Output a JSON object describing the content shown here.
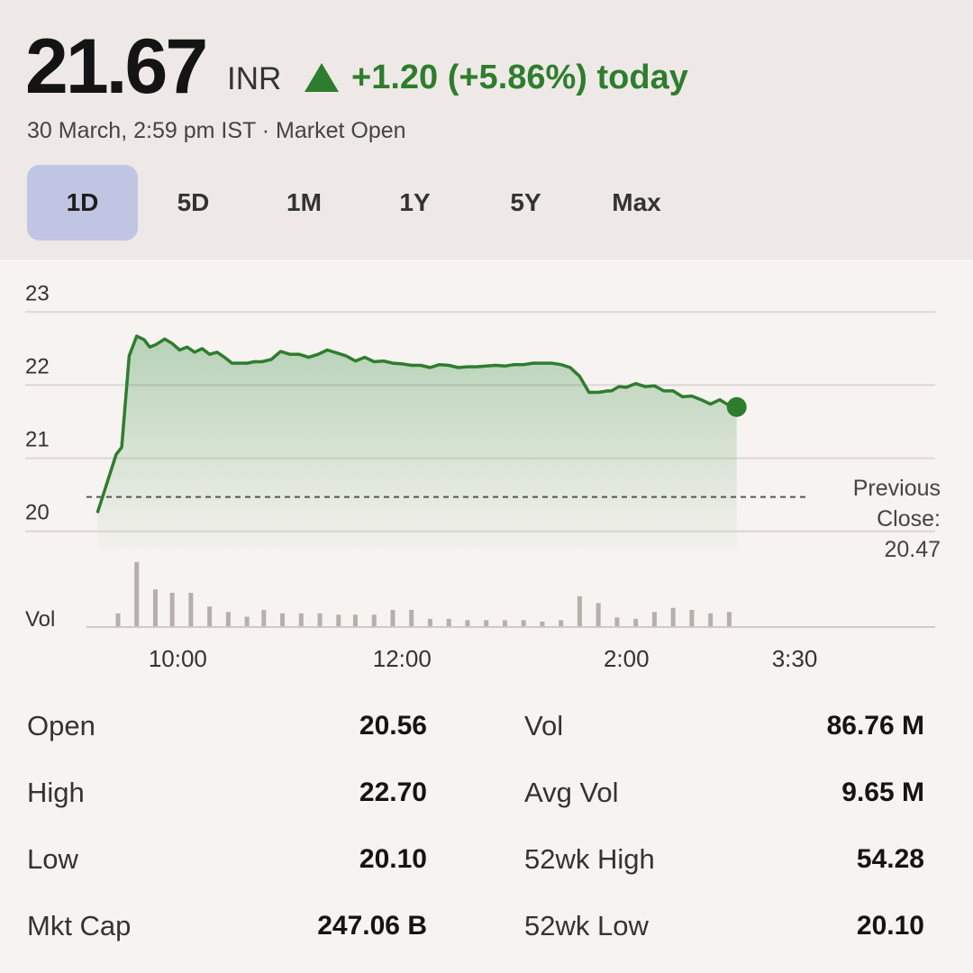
{
  "quote": {
    "price": "21.67",
    "currency": "INR",
    "change": "+1.20 (+5.86%) today",
    "timestamp": "30 March, 2:59 pm IST · Market Open",
    "up_color": "#2e7d2e"
  },
  "tabs": [
    {
      "label": "1D",
      "active": true
    },
    {
      "label": "5D",
      "active": false
    },
    {
      "label": "1M",
      "active": false
    },
    {
      "label": "1Y",
      "active": false
    },
    {
      "label": "5Y",
      "active": false
    },
    {
      "label": "Max",
      "active": false
    }
  ],
  "chart_data": {
    "type": "line",
    "ylim": [
      19.75,
      23.25
    ],
    "y_ticks": [
      "23",
      "22",
      "21",
      "20"
    ],
    "y_tick_values": [
      23,
      22,
      21,
      20
    ],
    "x_ticks": [
      "10:00",
      "12:00",
      "2:00",
      "3:30"
    ],
    "x_tick_minutes": [
      600,
      720,
      840,
      930
    ],
    "x_range_minutes": [
      555,
      930
    ],
    "previous_close": 20.47,
    "previous_close_label": [
      "Previous",
      "Close:",
      "20.47"
    ],
    "volume_label": "Vol",
    "series": [
      {
        "x": [
          557,
          562,
          567,
          570,
          574,
          578,
          582,
          585,
          588,
          593,
          597,
          601,
          605,
          609,
          613,
          617,
          621,
          625,
          629,
          633,
          637,
          641,
          645,
          650,
          655,
          660,
          665,
          670,
          675,
          680,
          685,
          690,
          695,
          700,
          705,
          710,
          715,
          720,
          725,
          730,
          735,
          740,
          745,
          750,
          755,
          760,
          765,
          770,
          775,
          780,
          785,
          790,
          795,
          800,
          805,
          810,
          815,
          820,
          825,
          830,
          832,
          836,
          840,
          845,
          850,
          855,
          860,
          865,
          870,
          875,
          880,
          885,
          890,
          895,
          899
        ],
        "y": [
          20.25,
          20.65,
          21.05,
          21.15,
          22.4,
          22.67,
          22.62,
          22.52,
          22.55,
          22.63,
          22.57,
          22.48,
          22.52,
          22.45,
          22.5,
          22.42,
          22.45,
          22.38,
          22.3,
          22.3,
          22.3,
          22.32,
          22.32,
          22.35,
          22.46,
          22.42,
          22.42,
          22.38,
          22.42,
          22.48,
          22.44,
          22.4,
          22.33,
          22.38,
          22.32,
          22.33,
          22.3,
          22.29,
          22.27,
          22.27,
          22.24,
          22.28,
          22.27,
          22.24,
          22.25,
          22.25,
          22.26,
          22.27,
          22.26,
          22.28,
          22.28,
          22.3,
          22.3,
          22.3,
          22.28,
          22.24,
          22.12,
          21.9,
          21.9,
          21.92,
          21.92,
          21.98,
          21.97,
          22.02,
          21.98,
          21.99,
          21.92,
          21.92,
          21.84,
          21.85,
          21.8,
          21.74,
          21.8,
          21.72,
          21.7
        ]
      }
    ],
    "volume": {
      "x": [
        568,
        578,
        588,
        597,
        607,
        617,
        627,
        637,
        646,
        656,
        666,
        676,
        686,
        695,
        705,
        715,
        725,
        735,
        745,
        755,
        765,
        775,
        785,
        795,
        805,
        815,
        825,
        835,
        845,
        855,
        865,
        875,
        885,
        895
      ],
      "values": [
        0.2,
        0.95,
        0.55,
        0.5,
        0.5,
        0.3,
        0.22,
        0.15,
        0.25,
        0.2,
        0.2,
        0.2,
        0.18,
        0.18,
        0.18,
        0.25,
        0.25,
        0.12,
        0.12,
        0.1,
        0.1,
        0.1,
        0.1,
        0.08,
        0.1,
        0.45,
        0.35,
        0.14,
        0.12,
        0.22,
        0.28,
        0.25,
        0.2,
        0.22
      ]
    }
  },
  "stats": [
    {
      "label": "Open",
      "value": "20.56"
    },
    {
      "label": "High",
      "value": "22.70"
    },
    {
      "label": "Low",
      "value": "20.10"
    },
    {
      "label": "Mkt Cap",
      "value": "247.06 B"
    },
    {
      "label": "Vol",
      "value": "86.76 M"
    },
    {
      "label": "Avg Vol",
      "value": "9.65 M"
    },
    {
      "label": "52wk High",
      "value": "54.28"
    },
    {
      "label": "52wk Low",
      "value": "20.10"
    }
  ]
}
